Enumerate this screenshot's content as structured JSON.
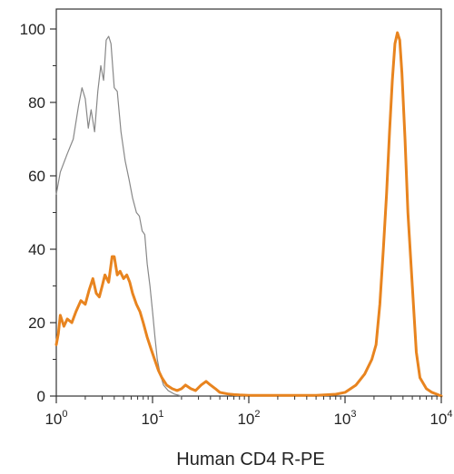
{
  "chart_data": {
    "type": "line",
    "title": "",
    "xlabel": "Human CD4  R-PE",
    "ylabel": "",
    "xscale": "log",
    "xlim": [
      1,
      10000
    ],
    "ylim": [
      0,
      105
    ],
    "grid": false,
    "legend": "none",
    "x_ticks": [
      {
        "value": 1,
        "base": "10",
        "exp": "0"
      },
      {
        "value": 10,
        "base": "10",
        "exp": "1"
      },
      {
        "value": 100,
        "base": "10",
        "exp": "2"
      },
      {
        "value": 1000,
        "base": "10",
        "exp": "3"
      },
      {
        "value": 10000,
        "base": "10",
        "exp": "4"
      }
    ],
    "y_ticks": [
      "0",
      "20",
      "40",
      "60",
      "80",
      "100"
    ],
    "series": [
      {
        "color": "#888888",
        "x": [
          1.0,
          1.1,
          1.3,
          1.5,
          1.7,
          1.85,
          2.0,
          2.15,
          2.3,
          2.5,
          2.7,
          2.9,
          3.1,
          3.3,
          3.5,
          3.7,
          4.0,
          4.3,
          4.7,
          5.2,
          5.7,
          6.2,
          6.8,
          7.3,
          7.8,
          8.3,
          8.8,
          9.4,
          10.0,
          10.6,
          11.2,
          12.0,
          13.0,
          14.5,
          17.0,
          20.0
        ],
        "y": [
          55,
          61,
          66,
          70,
          79,
          84,
          81,
          73,
          78,
          72,
          83,
          90,
          86,
          97,
          98,
          96,
          84,
          83,
          72,
          64,
          59,
          54,
          50,
          49,
          45,
          44,
          36,
          30,
          23,
          16,
          10,
          6,
          3,
          1.5,
          0.5,
          0
        ]
      },
      {
        "color": "#e8841f",
        "x": [
          1.0,
          1.05,
          1.1,
          1.2,
          1.3,
          1.45,
          1.6,
          1.8,
          2.0,
          2.2,
          2.4,
          2.6,
          2.8,
          3.0,
          3.2,
          3.5,
          3.8,
          4.0,
          4.3,
          4.6,
          5.0,
          5.4,
          5.8,
          6.2,
          6.8,
          7.4,
          8.0,
          8.8,
          9.6,
          10.5,
          11.5,
          12.5,
          14.0,
          16.0,
          18.0,
          20.0,
          22.0,
          25.0,
          28.0,
          32.0,
          36.0,
          40.0,
          45.0,
          50.0,
          60.0,
          70.0,
          80.0,
          100.0,
          150.0,
          200.0,
          300.0,
          500.0,
          800.0,
          1000.0,
          1300.0,
          1600.0,
          1900.0,
          2100.0,
          2300.0,
          2500.0,
          2700.0,
          2900.0,
          3100.0,
          3300.0,
          3500.0,
          3700.0,
          3900.0,
          4200.0,
          4500.0,
          5000.0,
          5500.0,
          6000.0,
          7000.0,
          8000.0,
          9000.0,
          10000.0
        ],
        "y": [
          14,
          17,
          22,
          19,
          21,
          20,
          23,
          26,
          25,
          29,
          32,
          28,
          27,
          30,
          33,
          31,
          38,
          38,
          33,
          34,
          32,
          33,
          31,
          28,
          25,
          23,
          20,
          16,
          13,
          10,
          7,
          5,
          3,
          2,
          1.5,
          2,
          3,
          2,
          1.5,
          3,
          4,
          3,
          2,
          1,
          0.6,
          0.4,
          0.3,
          0.2,
          0.2,
          0.2,
          0.2,
          0.2,
          0.5,
          1,
          3,
          6,
          10,
          14,
          25,
          40,
          55,
          72,
          86,
          96,
          99,
          97,
          88,
          70,
          50,
          30,
          12,
          5,
          2,
          1,
          0.5,
          0
        ]
      }
    ]
  }
}
